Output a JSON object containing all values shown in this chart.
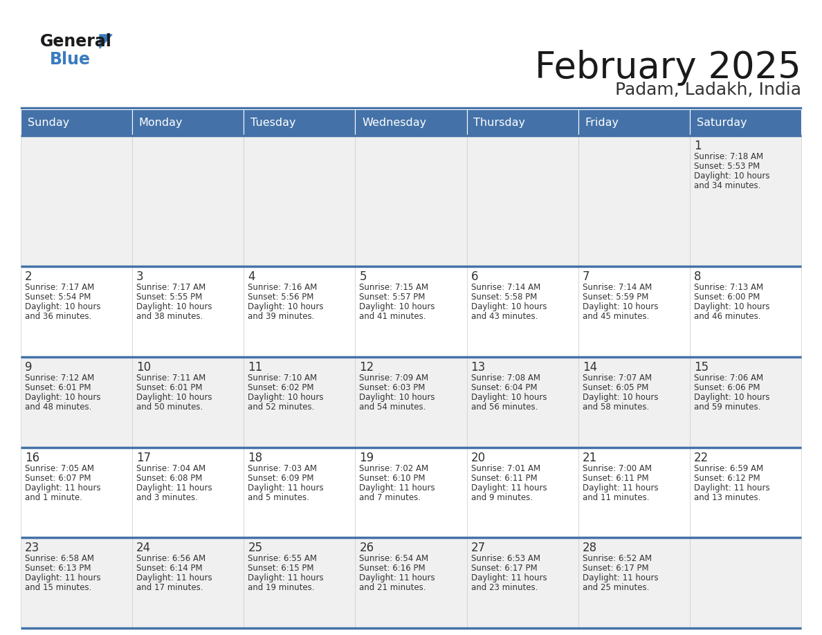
{
  "title": "February 2025",
  "subtitle": "Padam, Ladakh, India",
  "header_bg": "#4472a8",
  "header_text_color": "#ffffff",
  "cell_bg_light": "#f0f0f0",
  "cell_bg_white": "#ffffff",
  "border_color": "#4472a8",
  "thick_border_color": "#4472a8",
  "text_color": "#333333",
  "day_names": [
    "Sunday",
    "Monday",
    "Tuesday",
    "Wednesday",
    "Thursday",
    "Friday",
    "Saturday"
  ],
  "days": [
    {
      "day": 1,
      "col": 6,
      "row": 0,
      "sunrise": "7:18 AM",
      "sunset": "5:53 PM",
      "daylight": "10 hours and 34 minutes."
    },
    {
      "day": 2,
      "col": 0,
      "row": 1,
      "sunrise": "7:17 AM",
      "sunset": "5:54 PM",
      "daylight": "10 hours and 36 minutes."
    },
    {
      "day": 3,
      "col": 1,
      "row": 1,
      "sunrise": "7:17 AM",
      "sunset": "5:55 PM",
      "daylight": "10 hours and 38 minutes."
    },
    {
      "day": 4,
      "col": 2,
      "row": 1,
      "sunrise": "7:16 AM",
      "sunset": "5:56 PM",
      "daylight": "10 hours and 39 minutes."
    },
    {
      "day": 5,
      "col": 3,
      "row": 1,
      "sunrise": "7:15 AM",
      "sunset": "5:57 PM",
      "daylight": "10 hours and 41 minutes."
    },
    {
      "day": 6,
      "col": 4,
      "row": 1,
      "sunrise": "7:14 AM",
      "sunset": "5:58 PM",
      "daylight": "10 hours and 43 minutes."
    },
    {
      "day": 7,
      "col": 5,
      "row": 1,
      "sunrise": "7:14 AM",
      "sunset": "5:59 PM",
      "daylight": "10 hours and 45 minutes."
    },
    {
      "day": 8,
      "col": 6,
      "row": 1,
      "sunrise": "7:13 AM",
      "sunset": "6:00 PM",
      "daylight": "10 hours and 46 minutes."
    },
    {
      "day": 9,
      "col": 0,
      "row": 2,
      "sunrise": "7:12 AM",
      "sunset": "6:01 PM",
      "daylight": "10 hours and 48 minutes."
    },
    {
      "day": 10,
      "col": 1,
      "row": 2,
      "sunrise": "7:11 AM",
      "sunset": "6:01 PM",
      "daylight": "10 hours and 50 minutes."
    },
    {
      "day": 11,
      "col": 2,
      "row": 2,
      "sunrise": "7:10 AM",
      "sunset": "6:02 PM",
      "daylight": "10 hours and 52 minutes."
    },
    {
      "day": 12,
      "col": 3,
      "row": 2,
      "sunrise": "7:09 AM",
      "sunset": "6:03 PM",
      "daylight": "10 hours and 54 minutes."
    },
    {
      "day": 13,
      "col": 4,
      "row": 2,
      "sunrise": "7:08 AM",
      "sunset": "6:04 PM",
      "daylight": "10 hours and 56 minutes."
    },
    {
      "day": 14,
      "col": 5,
      "row": 2,
      "sunrise": "7:07 AM",
      "sunset": "6:05 PM",
      "daylight": "10 hours and 58 minutes."
    },
    {
      "day": 15,
      "col": 6,
      "row": 2,
      "sunrise": "7:06 AM",
      "sunset": "6:06 PM",
      "daylight": "10 hours and 59 minutes."
    },
    {
      "day": 16,
      "col": 0,
      "row": 3,
      "sunrise": "7:05 AM",
      "sunset": "6:07 PM",
      "daylight": "11 hours and 1 minute."
    },
    {
      "day": 17,
      "col": 1,
      "row": 3,
      "sunrise": "7:04 AM",
      "sunset": "6:08 PM",
      "daylight": "11 hours and 3 minutes."
    },
    {
      "day": 18,
      "col": 2,
      "row": 3,
      "sunrise": "7:03 AM",
      "sunset": "6:09 PM",
      "daylight": "11 hours and 5 minutes."
    },
    {
      "day": 19,
      "col": 3,
      "row": 3,
      "sunrise": "7:02 AM",
      "sunset": "6:10 PM",
      "daylight": "11 hours and 7 minutes."
    },
    {
      "day": 20,
      "col": 4,
      "row": 3,
      "sunrise": "7:01 AM",
      "sunset": "6:11 PM",
      "daylight": "11 hours and 9 minutes."
    },
    {
      "day": 21,
      "col": 5,
      "row": 3,
      "sunrise": "7:00 AM",
      "sunset": "6:11 PM",
      "daylight": "11 hours and 11 minutes."
    },
    {
      "day": 22,
      "col": 6,
      "row": 3,
      "sunrise": "6:59 AM",
      "sunset": "6:12 PM",
      "daylight": "11 hours and 13 minutes."
    },
    {
      "day": 23,
      "col": 0,
      "row": 4,
      "sunrise": "6:58 AM",
      "sunset": "6:13 PM",
      "daylight": "11 hours and 15 minutes."
    },
    {
      "day": 24,
      "col": 1,
      "row": 4,
      "sunrise": "6:56 AM",
      "sunset": "6:14 PM",
      "daylight": "11 hours and 17 minutes."
    },
    {
      "day": 25,
      "col": 2,
      "row": 4,
      "sunrise": "6:55 AM",
      "sunset": "6:15 PM",
      "daylight": "11 hours and 19 minutes."
    },
    {
      "day": 26,
      "col": 3,
      "row": 4,
      "sunrise": "6:54 AM",
      "sunset": "6:16 PM",
      "daylight": "11 hours and 21 minutes."
    },
    {
      "day": 27,
      "col": 4,
      "row": 4,
      "sunrise": "6:53 AM",
      "sunset": "6:17 PM",
      "daylight": "11 hours and 23 minutes."
    },
    {
      "day": 28,
      "col": 5,
      "row": 4,
      "sunrise": "6:52 AM",
      "sunset": "6:17 PM",
      "daylight": "11 hours and 25 minutes."
    }
  ],
  "logo_general_color": "#1a1a1a",
  "logo_blue_color": "#3a7bbf",
  "logo_triangle_color": "#3a7bbf"
}
